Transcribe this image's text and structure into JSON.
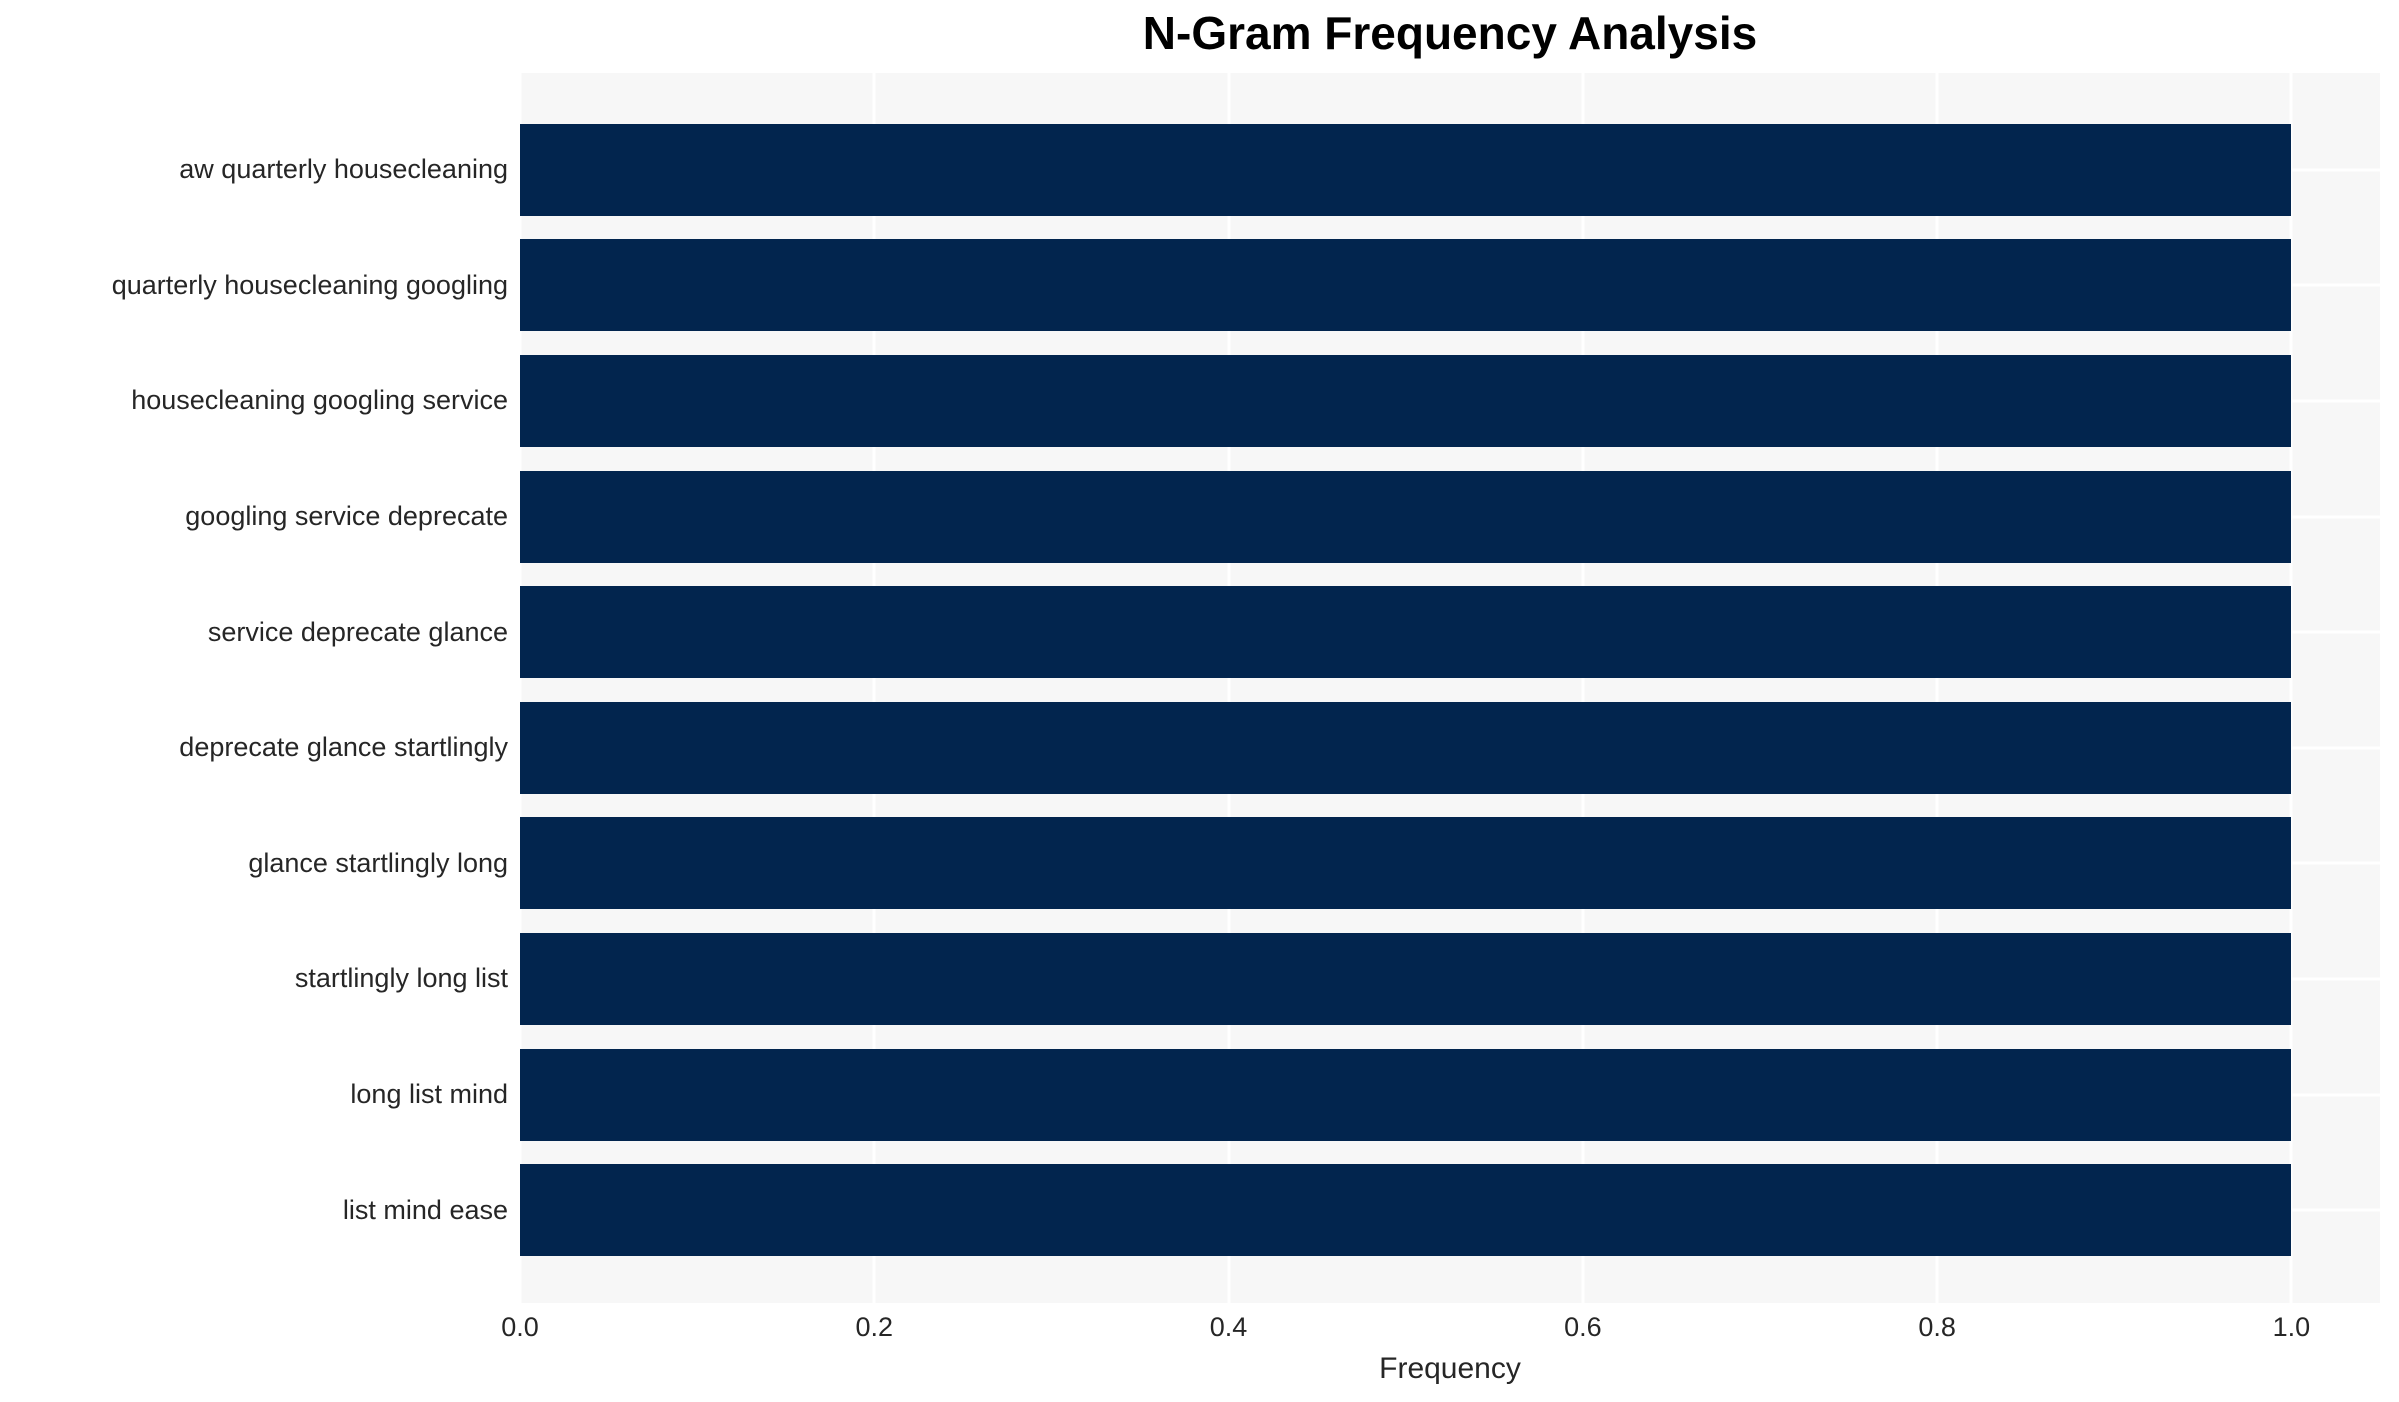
{
  "chart_data": {
    "type": "bar",
    "orientation": "horizontal",
    "title": "N-Gram Frequency Analysis",
    "xlabel": "Frequency",
    "ylabel": "",
    "categories": [
      "aw quarterly housecleaning",
      "quarterly housecleaning googling",
      "housecleaning googling service",
      "googling service deprecate",
      "service deprecate glance",
      "deprecate glance startlingly",
      "glance startlingly long",
      "startlingly long list",
      "long list mind",
      "list mind ease"
    ],
    "values": [
      1.0,
      1.0,
      1.0,
      1.0,
      1.0,
      1.0,
      1.0,
      1.0,
      1.0,
      1.0
    ],
    "xlim": [
      0,
      1.05
    ],
    "x_ticks": [
      0.0,
      0.2,
      0.4,
      0.6,
      0.8,
      1.0
    ],
    "x_tick_labels": [
      "0.0",
      "0.2",
      "0.4",
      "0.6",
      "0.8",
      "1.0"
    ],
    "grid": true,
    "legend": false,
    "colors": {
      "bar": "#02254e",
      "plot_background": "#f7f7f7",
      "gridline": "#ffffff",
      "tick_text": "#262626",
      "title_text": "#000000"
    }
  }
}
